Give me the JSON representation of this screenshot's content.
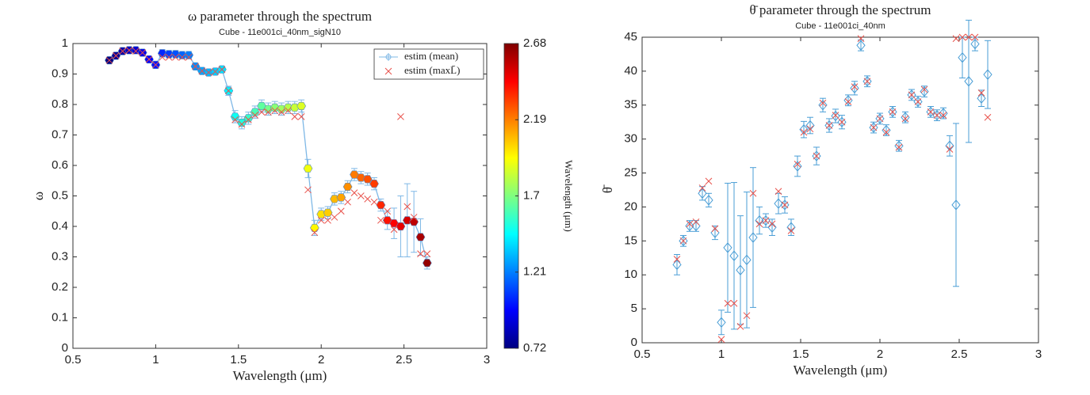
{
  "chart_data": [
    {
      "type": "errorbar",
      "title": "ω parameter through the spectrum",
      "subtitle": "Cube - 11e001ci_40nm_sigN10",
      "xlabel": "Wavelength (μm)",
      "ylabel": "ω",
      "x": [
        0.72,
        0.76,
        0.8,
        0.84,
        0.88,
        0.92,
        0.96,
        1.0,
        1.04,
        1.08,
        1.12,
        1.16,
        1.2,
        1.24,
        1.28,
        1.32,
        1.36,
        1.4,
        1.44,
        1.48,
        1.52,
        1.56,
        1.6,
        1.64,
        1.68,
        1.72,
        1.76,
        1.8,
        1.84,
        1.88,
        1.92,
        1.96,
        2.0,
        2.04,
        2.08,
        2.12,
        2.16,
        2.2,
        2.24,
        2.28,
        2.32,
        2.36,
        2.4,
        2.44,
        2.48,
        2.52,
        2.56,
        2.6,
        2.64
      ],
      "series": [
        {
          "name": "estim (mean)",
          "color": "#7fb8e6",
          "marker": "hexagon",
          "line": true,
          "values": [
            0.945,
            0.96,
            0.975,
            0.978,
            0.978,
            0.97,
            0.948,
            0.93,
            0.968,
            0.965,
            0.965,
            0.962,
            0.962,
            0.925,
            0.91,
            0.905,
            0.908,
            0.915,
            0.845,
            0.76,
            0.74,
            0.755,
            0.775,
            0.795,
            0.785,
            0.79,
            0.785,
            0.79,
            0.79,
            0.795,
            0.59,
            0.395,
            0.44,
            0.445,
            0.49,
            0.495,
            0.53,
            0.57,
            0.56,
            0.555,
            0.54,
            0.47,
            0.42,
            0.41,
            0.4,
            0.42,
            0.415,
            0.365,
            0.28
          ],
          "errors": [
            0.008,
            0.008,
            0.008,
            0.008,
            0.008,
            0.008,
            0.008,
            0.012,
            0.012,
            0.012,
            0.012,
            0.012,
            0.012,
            0.008,
            0.008,
            0.008,
            0.008,
            0.008,
            0.015,
            0.02,
            0.02,
            0.02,
            0.02,
            0.02,
            0.02,
            0.02,
            0.02,
            0.02,
            0.02,
            0.02,
            0.03,
            0.025,
            0.02,
            0.02,
            0.02,
            0.02,
            0.02,
            0.02,
            0.02,
            0.02,
            0.02,
            0.02,
            0.03,
            0.05,
            0.1,
            0.12,
            0.1,
            0.06,
            0.02
          ]
        },
        {
          "name": "estim (maxL̄)",
          "color": "#e8504a",
          "marker": "x",
          "values": [
            0.945,
            0.96,
            0.975,
            0.978,
            0.975,
            0.97,
            0.948,
            0.93,
            0.955,
            0.955,
            0.955,
            0.955,
            0.955,
            0.925,
            0.91,
            0.905,
            0.908,
            0.915,
            0.845,
            0.75,
            0.735,
            0.75,
            0.765,
            0.775,
            0.775,
            0.78,
            0.775,
            0.78,
            0.76,
            0.76,
            0.52,
            0.38,
            0.42,
            0.42,
            0.43,
            0.45,
            0.48,
            0.51,
            0.5,
            0.49,
            0.48,
            0.42,
            0.45,
            0.39,
            0.76,
            0.465,
            0.43,
            0.31,
            0.31
          ]
        }
      ],
      "xlim": [
        0.5,
        3
      ],
      "ylim": [
        0,
        1
      ],
      "xticks": [
        0.5,
        1,
        1.5,
        2,
        2.5,
        3
      ],
      "yticks": [
        0,
        0.1,
        0.2,
        0.3,
        0.4,
        0.5,
        0.6,
        0.7,
        0.8,
        0.9,
        1
      ],
      "legend": "upper right",
      "colorbar": {
        "label": "Wavelength (μm)",
        "colormap": "jet",
        "lim": [
          0.72,
          2.68
        ],
        "ticks": [
          0.72,
          1.21,
          1.7,
          2.19,
          2.68
        ]
      }
    },
    {
      "type": "errorbar",
      "title": "θ̄ parameter through the spectrum",
      "subtitle": "Cube - 11e001ci_40nm",
      "xlabel": "Wavelength (μm)",
      "ylabel": "θ̄",
      "x": [
        0.72,
        0.76,
        0.8,
        0.84,
        0.88,
        0.92,
        0.96,
        1.0,
        1.04,
        1.08,
        1.12,
        1.16,
        1.2,
        1.24,
        1.28,
        1.32,
        1.36,
        1.4,
        1.44,
        1.48,
        1.52,
        1.56,
        1.6,
        1.64,
        1.68,
        1.72,
        1.76,
        1.8,
        1.84,
        1.88,
        1.92,
        1.96,
        2.0,
        2.04,
        2.08,
        2.12,
        2.16,
        2.2,
        2.24,
        2.28,
        2.32,
        2.36,
        2.4,
        2.44,
        2.48,
        2.52,
        2.56,
        2.6,
        2.64,
        2.68
      ],
      "series": [
        {
          "color": "#4a9ed6",
          "marker": "diamond",
          "values": [
            11.5,
            15,
            17.2,
            17.2,
            22,
            21,
            16.2,
            3,
            14,
            12.8,
            10.7,
            12.2,
            15.5,
            18,
            18,
            17,
            20.5,
            20.3,
            17,
            26,
            31.4,
            32,
            27.5,
            35,
            32,
            33.4,
            32.5,
            35.7,
            37.5,
            43.8,
            38.5,
            31.7,
            33,
            31.3,
            34,
            29,
            33.2,
            36.5,
            35.5,
            37,
            34,
            33.5,
            33.8,
            29,
            20.3,
            42,
            38.5,
            44,
            36,
            39.5
          ],
          "errors": [
            1.5,
            0.8,
            0.8,
            0.8,
            1,
            1,
            1,
            1.8,
            9.5,
            10.8,
            8,
            10,
            10.3,
            2,
            1,
            1.2,
            1.5,
            1.2,
            1.2,
            1.5,
            1.2,
            1.2,
            1.3,
            1,
            1,
            1,
            1,
            0.8,
            1,
            0.8,
            0.8,
            0.8,
            0.8,
            0.8,
            0.8,
            0.8,
            0.8,
            0.8,
            0.8,
            0.8,
            0.8,
            0.8,
            0.8,
            1.5,
            12,
            3,
            9,
            1,
            1.2,
            5
          ]
        },
        {
          "color": "#e8504a",
          "marker": "x",
          "values": [
            12.3,
            15,
            17.5,
            17.8,
            22.8,
            23.8,
            16.8,
            0.5,
            5.8,
            5.8,
            2.4,
            4,
            22,
            17.5,
            18,
            17.5,
            22.3,
            20.3,
            16.5,
            26.3,
            31,
            31.5,
            27.5,
            35.3,
            32,
            33.5,
            32.5,
            35.5,
            37.7,
            44.8,
            38.5,
            31.7,
            33,
            31,
            34,
            28.8,
            33,
            36.5,
            35.5,
            37.3,
            34,
            33.5,
            33.5,
            28.5,
            44.8,
            45,
            45,
            45,
            36.8,
            33.2
          ]
        }
      ],
      "xlim": [
        0.5,
        3
      ],
      "ylim": [
        0,
        45
      ],
      "xticks": [
        0.5,
        1,
        1.5,
        2,
        2.5,
        3
      ],
      "yticks": [
        0,
        5,
        10,
        15,
        20,
        25,
        30,
        35,
        40,
        45
      ]
    }
  ]
}
